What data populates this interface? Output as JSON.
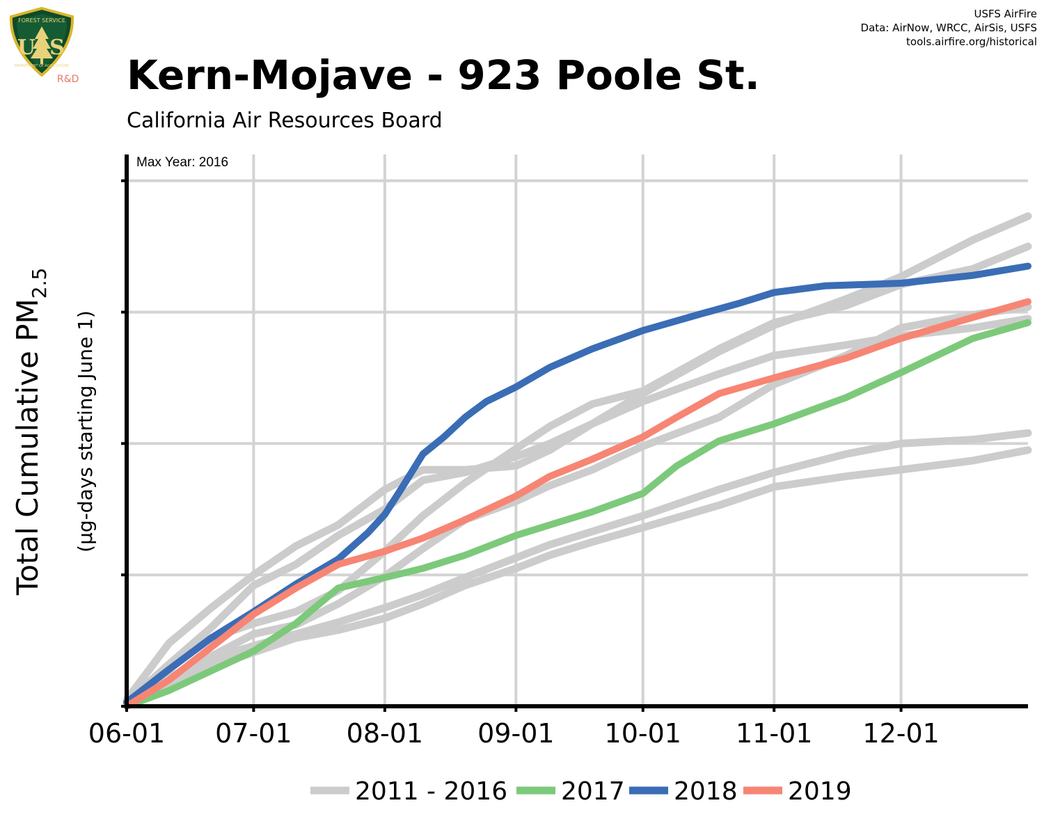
{
  "header": {
    "title": "Kern-Mojave - 923 Poole St.",
    "subtitle": "California Air Resources Board",
    "credits": [
      "USFS AirFire",
      "Data: AirNow, WRCC, AirSis, USFS",
      "tools.airfire.org/historical"
    ],
    "logo": {
      "icon": "usfs-shield-icon",
      "text": [
        "FOREST SERVICE",
        "U",
        "S",
        "DEPARTMENT OF AGRICULTURE"
      ],
      "rd_label": "R&D"
    }
  },
  "chart_data": {
    "type": "line",
    "ylabel": "Total Cumulative PM",
    "ylabel_sub": "2.5",
    "ylabel_note": "(μg-days starting June 1)",
    "annotation": "Max Year: 2016",
    "x_ticks": [
      "06-01",
      "07-01",
      "08-01",
      "09-01",
      "10-01",
      "11-01",
      "12-01"
    ],
    "x_tick_days": [
      0,
      30,
      61,
      92,
      122,
      153,
      183
    ],
    "xlim": [
      0,
      213
    ],
    "ylim": [
      0,
      4.2
    ],
    "y_gridlines": [
      1,
      2,
      3,
      4
    ],
    "y_tick_labels_shown": false,
    "grid": true,
    "legend_position": "bottom",
    "colors": {
      "historical": "#cccccc",
      "2017": "#7dc97b",
      "2018": "#3a6db5",
      "2019": "#f78574"
    },
    "series": [
      {
        "name": "2011 - 2016",
        "color": "#cccccc",
        "group": "historical",
        "x": [
          0,
          10,
          20,
          30,
          40,
          50,
          61,
          70,
          80,
          92,
          100,
          110,
          122,
          140,
          153,
          170,
          183,
          200,
          213
        ],
        "y": [
          0.05,
          0.48,
          0.75,
          1.0,
          1.22,
          1.38,
          1.65,
          1.8,
          1.8,
          1.83,
          1.95,
          2.15,
          2.38,
          2.7,
          2.9,
          3.1,
          3.27,
          3.55,
          3.73
        ]
      },
      {
        "name": "",
        "color": "#cccccc",
        "group": "historical",
        "x": [
          0,
          10,
          20,
          30,
          40,
          50,
          61,
          70,
          80,
          92,
          100,
          110,
          122,
          140,
          153,
          170,
          183,
          200,
          213
        ],
        "y": [
          0.03,
          0.32,
          0.52,
          0.63,
          0.72,
          0.88,
          1.18,
          1.45,
          1.7,
          1.96,
          2.13,
          2.3,
          2.4,
          2.72,
          2.92,
          3.05,
          3.21,
          3.33,
          3.5
        ]
      },
      {
        "name": "",
        "color": "#cccccc",
        "group": "historical",
        "x": [
          0,
          10,
          20,
          30,
          40,
          50,
          61,
          70,
          80,
          92,
          100,
          110,
          122,
          140,
          153,
          170,
          183,
          200,
          213
        ],
        "y": [
          0.02,
          0.2,
          0.36,
          0.46,
          0.55,
          0.64,
          0.75,
          0.85,
          0.98,
          1.13,
          1.23,
          1.33,
          1.45,
          1.65,
          1.78,
          1.92,
          2.0,
          2.03,
          2.08
        ]
      },
      {
        "name": "",
        "color": "#cccccc",
        "group": "historical",
        "x": [
          0,
          10,
          20,
          30,
          40,
          50,
          61,
          70,
          80,
          92,
          100,
          110,
          122,
          140,
          153,
          170,
          183,
          200,
          213
        ],
        "y": [
          0.02,
          0.22,
          0.38,
          0.55,
          0.62,
          0.78,
          0.99,
          1.2,
          1.42,
          1.56,
          1.68,
          1.8,
          1.98,
          2.2,
          2.45,
          2.67,
          2.88,
          2.98,
          3.04
        ]
      },
      {
        "name": "",
        "color": "#cccccc",
        "group": "historical",
        "x": [
          0,
          10,
          20,
          30,
          40,
          50,
          61,
          70,
          80,
          92,
          100,
          110,
          122,
          140,
          153,
          170,
          183,
          200,
          213
        ],
        "y": [
          0.03,
          0.32,
          0.6,
          0.92,
          1.08,
          1.3,
          1.5,
          1.72,
          1.78,
          1.9,
          2.0,
          2.15,
          2.32,
          2.53,
          2.67,
          2.75,
          2.82,
          2.88,
          2.95
        ]
      },
      {
        "name": "",
        "color": "#cccccc",
        "group": "historical",
        "x": [
          0,
          10,
          20,
          30,
          40,
          50,
          61,
          70,
          80,
          92,
          100,
          110,
          122,
          140,
          153,
          170,
          183,
          200,
          213
        ],
        "y": [
          0.02,
          0.18,
          0.3,
          0.41,
          0.52,
          0.58,
          0.67,
          0.78,
          0.92,
          1.05,
          1.15,
          1.25,
          1.36,
          1.53,
          1.67,
          1.75,
          1.8,
          1.87,
          1.95
        ]
      },
      {
        "name": "2017",
        "color": "#7dc97b",
        "group": "2017",
        "x": [
          0,
          10,
          20,
          30,
          40,
          50,
          61,
          70,
          80,
          92,
          100,
          110,
          122,
          130,
          140,
          153,
          170,
          183,
          200,
          213
        ],
        "y": [
          0.0,
          0.12,
          0.27,
          0.42,
          0.63,
          0.9,
          0.98,
          1.05,
          1.15,
          1.3,
          1.38,
          1.48,
          1.62,
          1.83,
          2.02,
          2.15,
          2.35,
          2.54,
          2.8,
          2.92
        ]
      },
      {
        "name": "2018",
        "color": "#3a6db5",
        "group": "2018",
        "x": [
          0,
          10,
          20,
          30,
          40,
          50,
          57,
          61,
          65,
          70,
          75,
          80,
          85,
          92,
          100,
          110,
          122,
          135,
          145,
          153,
          165,
          183,
          200,
          213
        ],
        "y": [
          0.03,
          0.28,
          0.52,
          0.72,
          0.93,
          1.12,
          1.32,
          1.46,
          1.66,
          1.92,
          2.05,
          2.2,
          2.32,
          2.43,
          2.58,
          2.72,
          2.86,
          2.98,
          3.07,
          3.15,
          3.2,
          3.22,
          3.28,
          3.35
        ]
      },
      {
        "name": "2019",
        "color": "#f78574",
        "group": "2019",
        "x": [
          0,
          10,
          20,
          30,
          40,
          50,
          61,
          70,
          80,
          92,
          100,
          110,
          122,
          130,
          140,
          153,
          170,
          183,
          200,
          213
        ],
        "y": [
          0.0,
          0.2,
          0.45,
          0.7,
          0.9,
          1.08,
          1.18,
          1.28,
          1.42,
          1.6,
          1.75,
          1.88,
          2.05,
          2.2,
          2.38,
          2.5,
          2.65,
          2.8,
          2.96,
          3.08
        ]
      }
    ],
    "legend": [
      {
        "label": "2011 - 2016",
        "color": "#cccccc"
      },
      {
        "label": "2017",
        "color": "#7dc97b"
      },
      {
        "label": "2018",
        "color": "#3a6db5"
      },
      {
        "label": "2019",
        "color": "#f78574"
      }
    ]
  }
}
